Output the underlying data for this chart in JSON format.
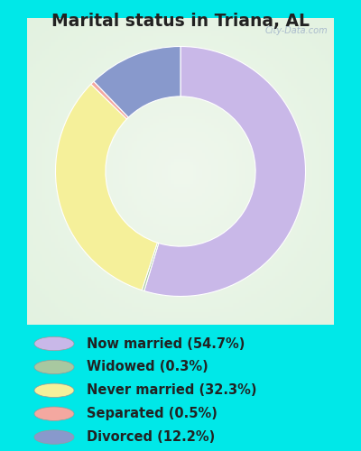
{
  "title": "Marital status in Triana, AL",
  "slices": [
    54.7,
    0.3,
    32.3,
    0.5,
    12.2
  ],
  "labels": [
    "Now married (54.7%)",
    "Widowed (0.3%)",
    "Never married (32.3%)",
    "Separated (0.5%)",
    "Divorced (12.2%)"
  ],
  "colors": [
    "#c9b8e8",
    "#a8c8a0",
    "#f5f09a",
    "#f4a8a0",
    "#8899cc"
  ],
  "bg_outer": "#00e8e8",
  "bg_chart_center": "#e8f5ee",
  "bg_chart_edge": "#c8e8d8",
  "title_color": "#222222",
  "title_fontsize": 13.5,
  "legend_fontsize": 10.5,
  "watermark": "City-Data.com",
  "donut_width": 0.38
}
